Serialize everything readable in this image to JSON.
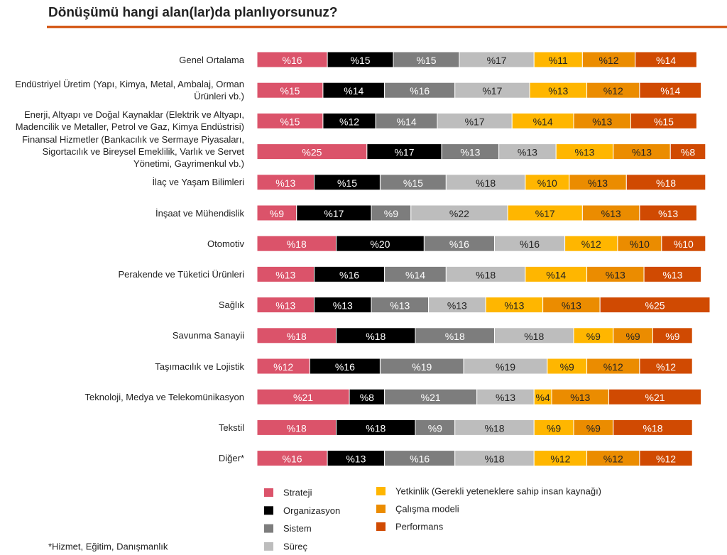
{
  "chart_data": {
    "type": "stacked-bar-horizontal",
    "title": "Dönüşümü hangi alan(lar)da planlıyorsunuz?",
    "footnote": "*Hizmet, Eğitim, Danışmanlık",
    "categories": [
      "Genel Ortalama",
      "Endüstriyel Üretim (Yapı, Kimya, Metal, Ambalaj, Orman Ürünleri vb.)",
      "Enerji, Altyapı ve Doğal Kaynaklar (Elektrik ve Altyapı, Madencilik ve Metaller, Petrol ve Gaz, Kimya Endüstrisi)",
      "Finansal Hizmetler (Bankacılık ve Sermaye Piyasaları, Sigortacılık ve Bireysel Emeklilik, Varlık ve Servet Yönetimi, Gayrimenkul vb.)",
      "İlaç ve Yaşam Bilimleri",
      "İnşaat ve Mühendislik",
      "Otomotiv",
      "Perakende ve Tüketici Ürünleri",
      "Sağlık",
      "Savunma Sanayii",
      "Taşımacılık ve Lojistik",
      "Teknoloji, Medya ve Telekomünikasyon",
      "Tekstil",
      "Diğer*"
    ],
    "series": [
      {
        "name": "Strateji",
        "color": "#db536a",
        "values": [
          16,
          15,
          15,
          25,
          13,
          9,
          18,
          13,
          13,
          18,
          12,
          21,
          18,
          16
        ],
        "value_labels": [
          "%16",
          "%15",
          "%15",
          "%25",
          "%13",
          "%9",
          "%18",
          "%13",
          "%13",
          "%18",
          "%12",
          "%21",
          "%18",
          "%16"
        ]
      },
      {
        "name": "Organizasyon",
        "color": "#000000",
        "values": [
          15,
          14,
          12,
          17,
          15,
          17,
          20,
          16,
          13,
          18,
          16,
          8,
          18,
          13
        ],
        "value_labels": [
          "%15",
          "%14",
          "%12",
          "%17",
          "%15",
          "%17",
          "%20",
          "%16",
          "%13",
          "%18",
          "%16",
          "%8",
          "%18",
          "%13"
        ]
      },
      {
        "name": "Sistem",
        "color": "#7d7d7d",
        "values": [
          15,
          16,
          14,
          13,
          15,
          9,
          16,
          14,
          13,
          18,
          19,
          21,
          9,
          16
        ],
        "value_labels": [
          "%15",
          "%16",
          "%14",
          "%13",
          "%15",
          "%9",
          "%16",
          "%14",
          "%13",
          "%18",
          "%19",
          "%21",
          "%9",
          "%16"
        ]
      },
      {
        "name": "Süreç",
        "color": "#bdbdbd",
        "values": [
          17,
          17,
          17,
          13,
          18,
          22,
          16,
          18,
          13,
          18,
          19,
          13,
          18,
          18
        ],
        "value_labels": [
          "%17",
          "%17",
          "%17",
          "%13",
          "%18",
          "%22",
          "%16",
          "%18",
          "%13",
          "%18",
          "%19",
          "%13",
          "%18",
          "%18"
        ]
      },
      {
        "name": "Yetkinlik (Gerekli yeteneklere sahip insan kaynağı)",
        "color": "#ffb600",
        "values": [
          11,
          13,
          14,
          13,
          10,
          17,
          12,
          14,
          13,
          9,
          9,
          4,
          9,
          12
        ],
        "value_labels": [
          "%11",
          "%13",
          "%14",
          "%13",
          "%10",
          "%17",
          "%12",
          "%14",
          "%13",
          "%9",
          "%9",
          "%4",
          "%9",
          "%12"
        ]
      },
      {
        "name": "Çalışma modeli",
        "color": "#eb8c00",
        "values": [
          12,
          12,
          13,
          13,
          13,
          13,
          10,
          13,
          13,
          9,
          12,
          13,
          9,
          12
        ],
        "value_labels": [
          "%12",
          "%12",
          "%13",
          "%13",
          "%13",
          "%13",
          "%10",
          "%13",
          "%13",
          "%9",
          "%12",
          "%13",
          "%9",
          "%12"
        ]
      },
      {
        "name": "Performans",
        "color": "#d04a02",
        "values": [
          14,
          14,
          15,
          8,
          18,
          13,
          10,
          13,
          25,
          9,
          12,
          21,
          18,
          12
        ],
        "value_labels": [
          "%14",
          "%14",
          "%15",
          "%8",
          "%18",
          "%13",
          "%10",
          "%13",
          "%25",
          "%9",
          "%12",
          "%21",
          "%18",
          "%12"
        ]
      }
    ]
  }
}
